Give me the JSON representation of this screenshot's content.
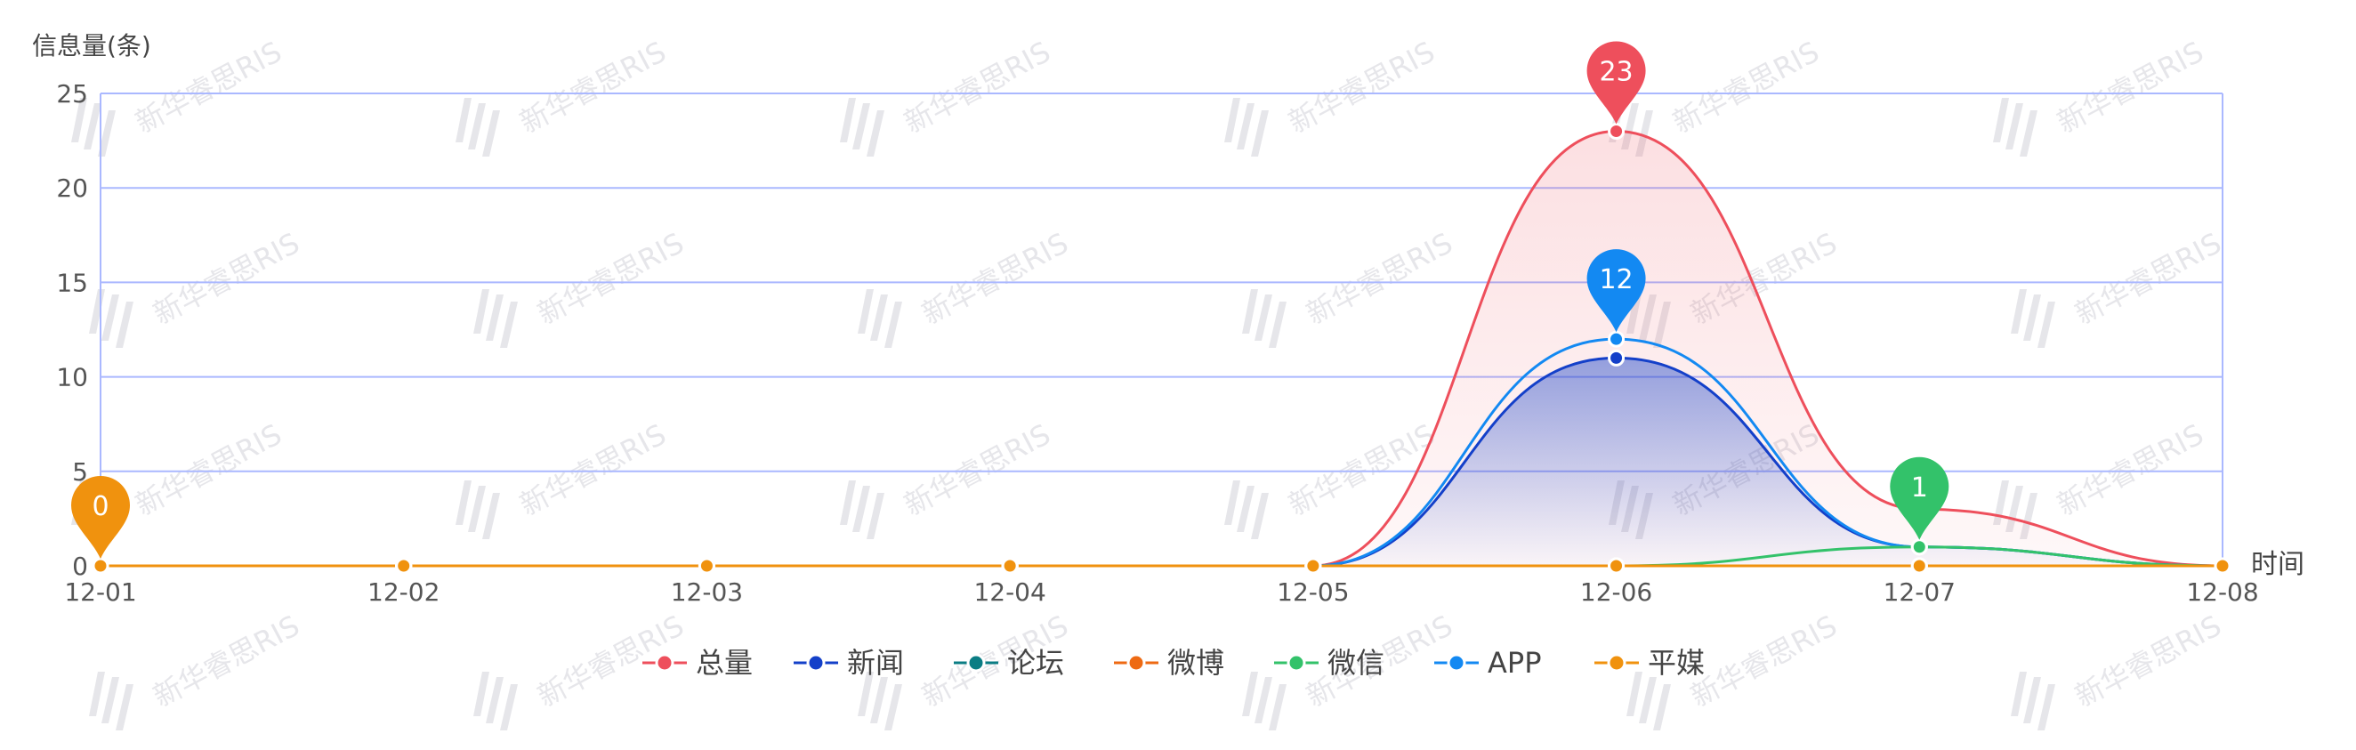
{
  "chart_data": {
    "type": "line",
    "title": "",
    "ylabel": "信息量(条)",
    "xlabel": "时间",
    "ylim": [
      0,
      25
    ],
    "yticks": [
      0,
      5,
      10,
      15,
      20,
      25
    ],
    "grid": true,
    "legend_position": "bottom-center",
    "categories": [
      "12-01",
      "12-02",
      "12-03",
      "12-04",
      "12-05",
      "12-06",
      "12-07",
      "12-08"
    ],
    "watermark_text": "新华睿思RIS",
    "series": [
      {
        "name": "总量",
        "color": "#ee4f5c",
        "values": [
          0,
          0,
          0,
          0,
          0,
          23,
          3,
          0
        ],
        "area": true,
        "max_label": "23"
      },
      {
        "name": "新闻",
        "color": "#1440c9",
        "values": [
          0,
          0,
          0,
          0,
          0,
          11,
          1,
          0
        ],
        "area": true
      },
      {
        "name": "论坛",
        "color": "#0b7d84",
        "values": [
          0,
          0,
          0,
          0,
          0,
          0,
          0,
          0
        ]
      },
      {
        "name": "微博",
        "color": "#ee6a13",
        "values": [
          0,
          0,
          0,
          0,
          0,
          0,
          0,
          0
        ]
      },
      {
        "name": "微信",
        "color": "#33c26a",
        "values": [
          0,
          0,
          0,
          0,
          0,
          0,
          1,
          0
        ],
        "max_label": "1"
      },
      {
        "name": "APP",
        "color": "#1389f2",
        "values": [
          0,
          0,
          0,
          0,
          0,
          12,
          1,
          0
        ],
        "max_label": "12"
      },
      {
        "name": "平媒",
        "color": "#f0920e",
        "values": [
          0,
          0,
          0,
          0,
          0,
          0,
          0,
          0
        ],
        "max_label": "0"
      }
    ]
  }
}
